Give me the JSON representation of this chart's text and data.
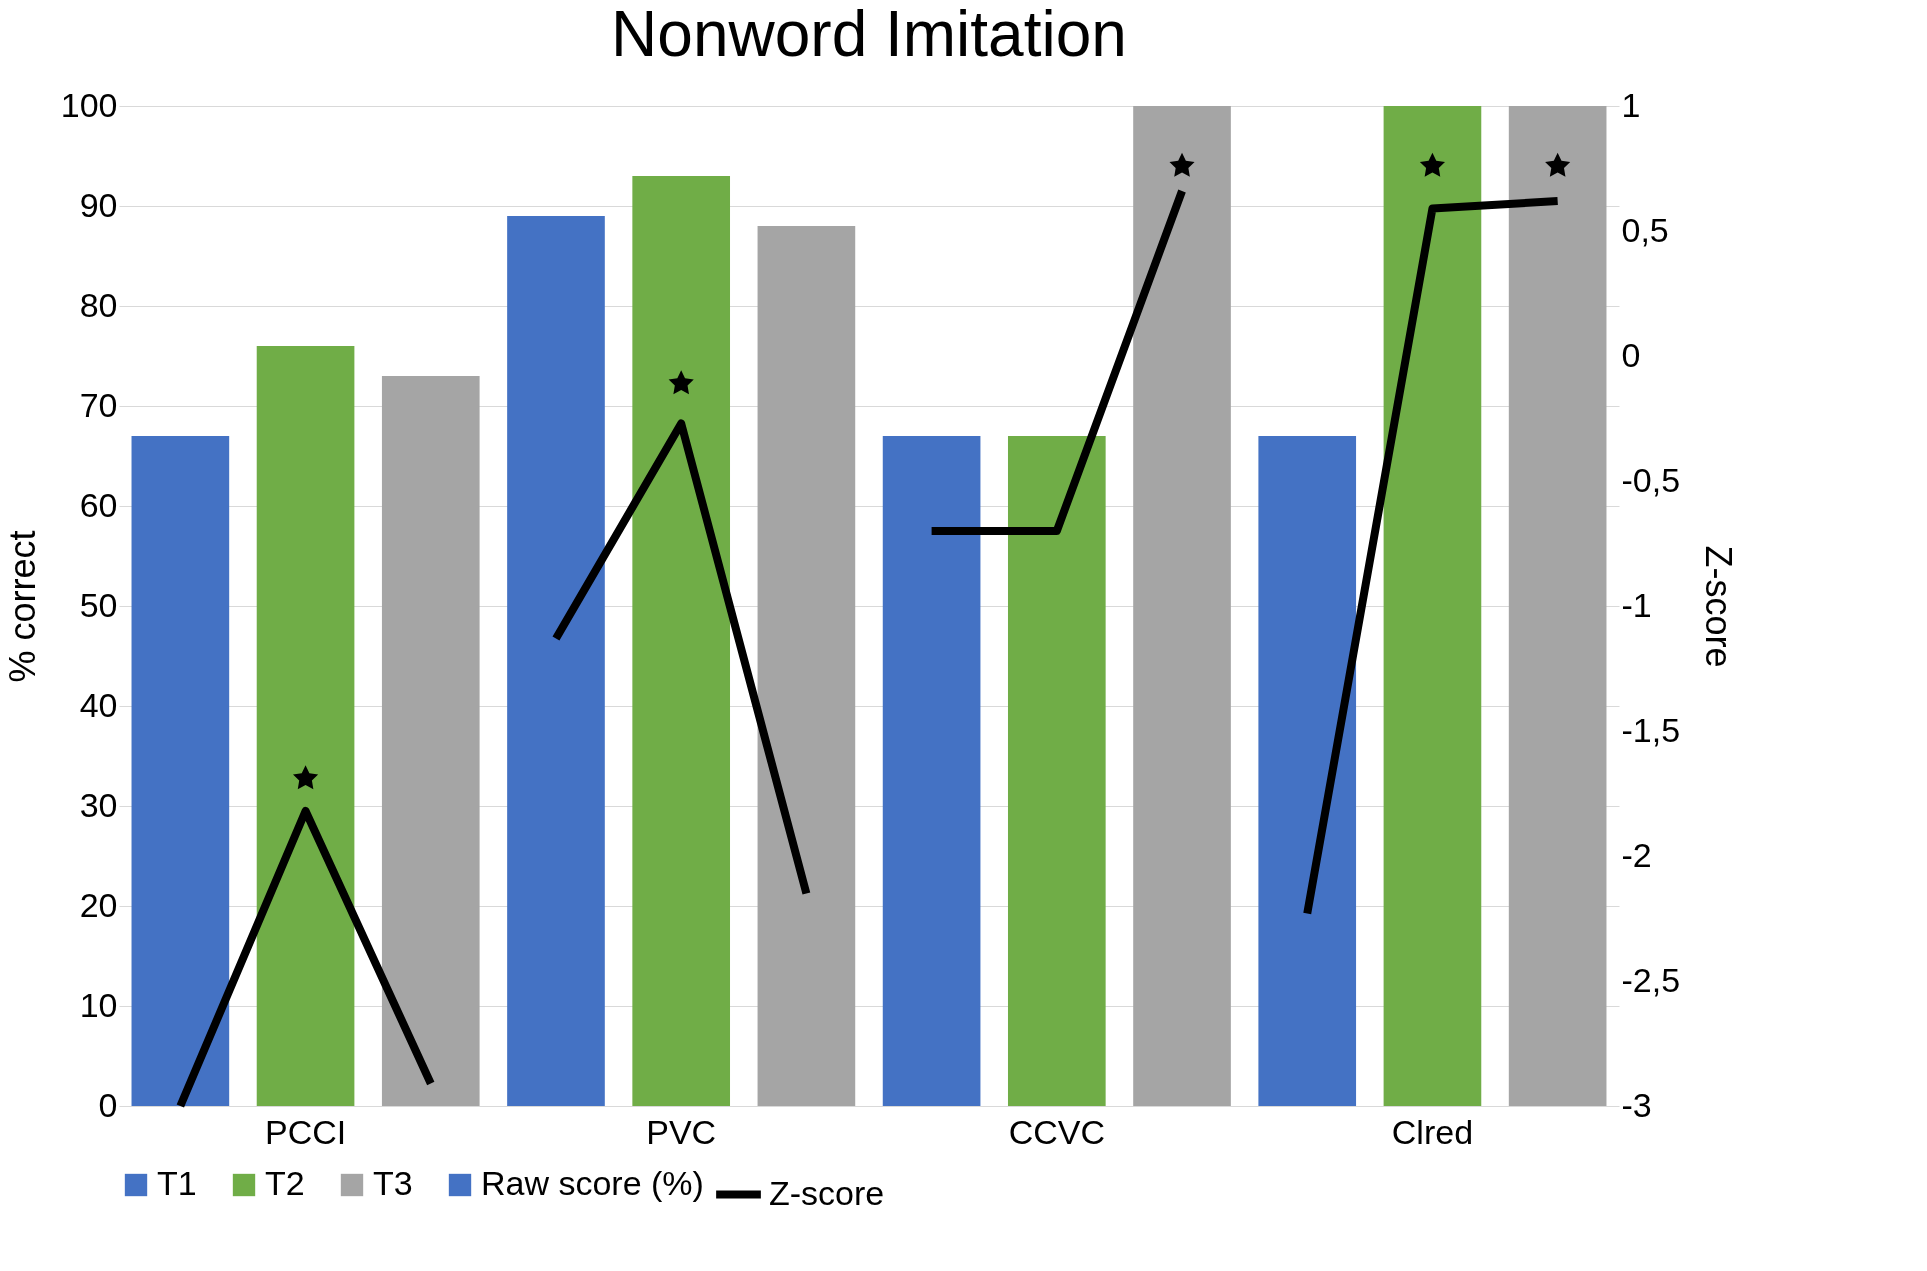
{
  "chart_data": {
    "type": "bar",
    "title": "Nonword Imitation",
    "ylabel": "% correct",
    "y2label": "Z-score",
    "categories": [
      null,
      "PCCI",
      null,
      null,
      "PVC",
      null,
      null,
      "CCVC",
      null,
      null,
      "Clred",
      null
    ],
    "series": [
      {
        "name": "T1",
        "color": "#4472c4",
        "values": [
          67,
          null,
          null,
          89,
          null,
          null,
          67,
          null,
          null,
          67,
          null,
          null
        ]
      },
      {
        "name": "T2",
        "color": "#70ad47",
        "values": [
          null,
          76,
          null,
          null,
          93,
          null,
          null,
          67,
          null,
          null,
          100,
          null
        ]
      },
      {
        "name": "T3",
        "color": "#a5a5a5",
        "values": [
          null,
          null,
          73,
          null,
          null,
          88,
          null,
          null,
          100,
          null,
          null,
          100
        ]
      },
      {
        "name": "Raw score (%)",
        "color": "#4472c4",
        "values": [
          null,
          null,
          null,
          null,
          null,
          null,
          null,
          null,
          null,
          null,
          null,
          null
        ]
      },
      {
        "name": "Z-score",
        "type": "line",
        "axis": "y2",
        "color": "#000000",
        "values": [
          -3,
          -1.82,
          -2.91,
          null,
          null,
          null,
          null,
          null,
          null,
          null,
          null,
          null
        ]
      },
      {
        "type": "line",
        "axis": "y2",
        "color": "#000000",
        "values": [
          null,
          null,
          null,
          -1.13,
          -0.27,
          -2.15,
          null,
          null,
          null,
          null,
          null,
          null
        ]
      },
      {
        "type": "line",
        "axis": "y2",
        "color": "#000000",
        "values": [
          null,
          null,
          null,
          null,
          null,
          null,
          -0.7,
          -0.7,
          0.66,
          null,
          null,
          null
        ]
      },
      {
        "type": "line",
        "axis": "y2",
        "color": "#000000",
        "values": [
          null,
          null,
          null,
          null,
          null,
          null,
          null,
          null,
          null,
          -2.23,
          0.59,
          0.62
        ]
      },
      {
        "type": "scatter",
        "axis": "y2",
        "marker": "star",
        "color": "#000000",
        "values": [
          null,
          -1.69,
          null,
          null,
          -0.11,
          null,
          null,
          null,
          0.76,
          null,
          0.76,
          0.76
        ]
      }
    ],
    "ylim": [
      0,
      100
    ],
    "yticks": [
      0,
      10,
      20,
      30,
      40,
      50,
      60,
      70,
      80,
      90,
      100
    ],
    "y2lim": [
      -3,
      1
    ],
    "y2ticks": [
      -3,
      {
        "value": -2.5,
        "label": "-2,5"
      },
      -2,
      {
        "value": -1.5,
        "label": "-1,5"
      },
      -1,
      {
        "value": -0.5,
        "label": "-0,5"
      },
      0,
      {
        "value": 0.5,
        "label": "0,5"
      },
      1
    ],
    "grid": "y",
    "legend": "bottom"
  }
}
